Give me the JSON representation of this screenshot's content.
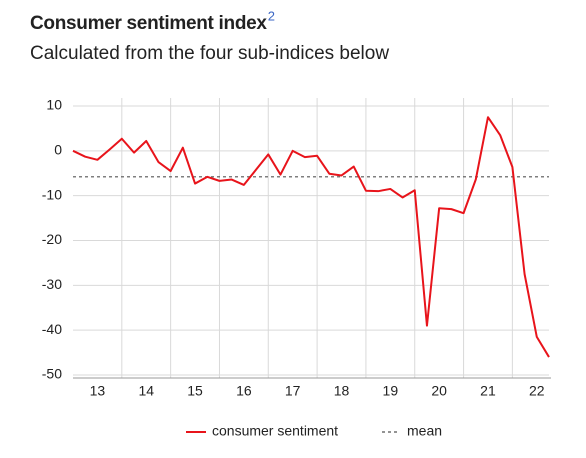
{
  "chart_data": {
    "type": "line",
    "title": "Consumer sentiment index",
    "title_footnote": "2",
    "subtitle": "Calculated from the four sub-indices below",
    "x": [
      13,
      13.25,
      13.5,
      13.75,
      14,
      14.25,
      14.5,
      14.75,
      15,
      15.25,
      15.5,
      15.75,
      16,
      16.25,
      16.5,
      16.75,
      17,
      17.25,
      17.5,
      17.75,
      18,
      18.25,
      18.5,
      18.75,
      19,
      19.25,
      19.5,
      19.75,
      20,
      20.25,
      20.5,
      20.75,
      21,
      21.25,
      21.5,
      21.75,
      22,
      22.25,
      22.5,
      22.75
    ],
    "series": [
      {
        "name": "consumer sentiment",
        "color": "#e8141b",
        "values": [
          0,
          -1.3,
          -2.0,
          0.3,
          2.7,
          -0.4,
          2.2,
          -2.5,
          -4.5,
          0.7,
          -7.3,
          -5.8,
          -6.7,
          -6.4,
          -7.6,
          -4.2,
          -0.8,
          -5.3,
          0.0,
          -1.4,
          -1.1,
          -5.1,
          -5.5,
          -3.5,
          -8.9,
          -9.0,
          -8.5,
          -10.4,
          -8.8,
          -39,
          -12.8,
          -13,
          -13.9,
          -6.4,
          7.5,
          3.5,
          -3.6,
          -27.5,
          -41.5,
          -46
        ]
      }
    ],
    "reference_line": {
      "name": "mean",
      "value": -5.8,
      "color": "#555555"
    },
    "xlim": [
      13,
      22.75
    ],
    "xticks": [
      {
        "value": 13.5,
        "label": "13"
      },
      {
        "value": 14.5,
        "label": "14"
      },
      {
        "value": 15.5,
        "label": "15"
      },
      {
        "value": 16.5,
        "label": "16"
      },
      {
        "value": 17.5,
        "label": "17"
      },
      {
        "value": 18.5,
        "label": "18"
      },
      {
        "value": 19.5,
        "label": "19"
      },
      {
        "value": 20.5,
        "label": "20"
      },
      {
        "value": 21.5,
        "label": "21"
      },
      {
        "value": 22.5,
        "label": "22"
      }
    ],
    "ylim": [
      -50,
      10
    ],
    "yticks": [
      10,
      0,
      -10,
      -20,
      -30,
      -40,
      -50
    ],
    "grid": true,
    "legend": "bottom"
  }
}
